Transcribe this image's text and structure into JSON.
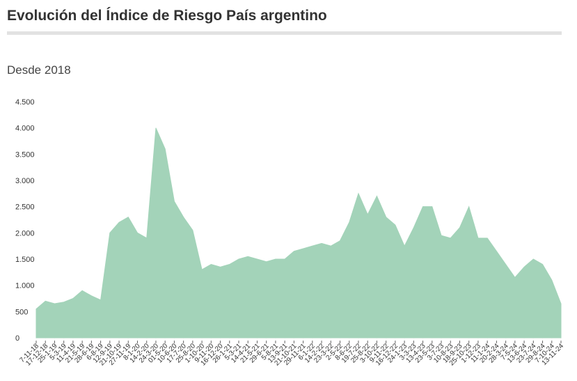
{
  "chart_data": {
    "type": "area",
    "title": "Evolución del Índice de Riesgo País argentino",
    "subtitle": "Desde 2018",
    "color": "#a3d3b9",
    "categories": [
      "7-11-18",
      "17-12-18",
      "25-1-19",
      "5-3-19",
      "11-4-19",
      "21-5-19",
      "28-6-19",
      "6-8-19",
      "12-9-19",
      "21-10-19",
      "27-11-19",
      "8-1-20",
      "14-2-20",
      "24-3-20",
      "01-5-20",
      "10-6-20",
      "17-7-20",
      "25-8-20",
      "1-10-20",
      "9-11-20",
      "16-12-20",
      "26-1-21",
      "5-3-21",
      "14-4-21",
      "21-5-21",
      "29-6-21",
      "5-8-21",
      "13-9-21",
      "21-10-21",
      "29-11-21",
      "6-1-22",
      "14-2-22",
      "23-3-22",
      "2-5-22",
      "8-6-22",
      "19-7-22",
      "25-8-22",
      "3-10-22",
      "9-11-22",
      "16-12-22",
      "24-1-23",
      "3-3-23",
      "13-4-23",
      "23-5-23",
      "3-7-23",
      "10-8-23",
      "18-9-23",
      "25-10-23",
      "1-12-23",
      "11-1-24",
      "20-2-24",
      "28-3-24",
      "7-5-24",
      "13-6-24",
      "23-7-24",
      "29-8-24",
      "7-10-24",
      "13-11-24"
    ],
    "values": [
      550,
      700,
      650,
      680,
      750,
      900,
      800,
      720,
      2000,
      2200,
      2300,
      2000,
      1900,
      4000,
      3600,
      2600,
      2300,
      2050,
      1300,
      1400,
      1350,
      1400,
      1500,
      1550,
      1500,
      1450,
      1500,
      1500,
      1650,
      1700,
      1750,
      1800,
      1750,
      1850,
      2200,
      2750,
      2350,
      2700,
      2300,
      2150,
      1750,
      2100,
      2500,
      2500,
      1950,
      1900,
      2100,
      2500,
      1900,
      1900,
      1650,
      1400,
      1150,
      1350,
      1500,
      1400,
      1100,
      650
    ],
    "ylim": [
      0,
      4500
    ],
    "yticks": [
      0,
      500,
      {
        "value": 1000,
        "label": "1.000"
      },
      {
        "value": 1500,
        "label": "1.500"
      },
      {
        "value": 2000,
        "label": "2.000"
      },
      {
        "value": 2500,
        "label": "2.500"
      },
      {
        "value": 3000,
        "label": "3.000"
      },
      {
        "value": 3500,
        "label": "3.500"
      },
      {
        "value": 4000,
        "label": "4.000"
      },
      {
        "value": 4500,
        "label": "4.500"
      }
    ]
  }
}
